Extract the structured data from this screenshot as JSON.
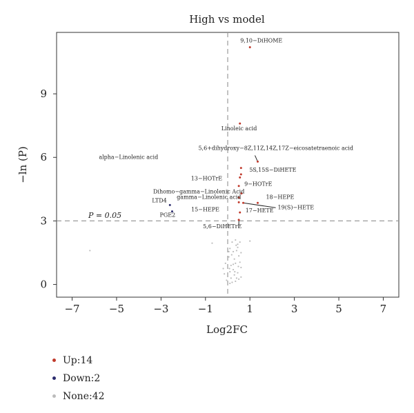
{
  "chart_data": {
    "type": "scatter",
    "title": "High vs model",
    "xlabel": "Log2FC",
    "ylabel": "−ln (P)",
    "xlim": [
      -7.7,
      7.7
    ],
    "ylim": [
      -0.6,
      11.9
    ],
    "xticks": [
      -7,
      -5,
      -3,
      -1,
      1,
      3,
      5,
      7
    ],
    "yticks": [
      0,
      3,
      6,
      9
    ],
    "tick_labels_x": [
      "−7",
      "−5",
      "−3",
      "−1",
      "1",
      "3",
      "5",
      "7"
    ],
    "tick_labels_y": [
      "0",
      "3",
      "6",
      "9"
    ],
    "threshold_y": 3.0,
    "threshold_x": 0.0,
    "threshold_label": "P = 0.05",
    "grid": false,
    "colors": {
      "up": "#c0392b",
      "down": "#2c2c6e",
      "none": "#bcbcbc"
    },
    "series": [
      {
        "name": "Up:14",
        "category": "up",
        "points": [
          {
            "x": 1.0,
            "y": 11.2,
            "label": "9,10−DiHOME"
          },
          {
            "x": 0.55,
            "y": 7.6,
            "label": "Linoleic acid"
          },
          {
            "x": 1.35,
            "y": 5.8,
            "label": "5,6+dihydroxy−8Z,11Z,14Z,17Z−eicosatetraenoic acid"
          },
          {
            "x": 0.6,
            "y": 5.5,
            "label": "alpha−Linolenic acid"
          },
          {
            "x": 0.6,
            "y": 5.2,
            "label": "5S,15S−DiHETE"
          },
          {
            "x": 0.55,
            "y": 5.05,
            "label": "13−HOTrE"
          },
          {
            "x": 0.5,
            "y": 4.65,
            "label": "9−HOTrE"
          },
          {
            "x": 0.62,
            "y": 4.3,
            "label": "Dihomo−gamma−Linolenic Acid"
          },
          {
            "x": 0.5,
            "y": 4.1,
            "label": "gamma−Linolenic acid"
          },
          {
            "x": 1.35,
            "y": 3.85,
            "label": "18−HEPE"
          },
          {
            "x": 0.5,
            "y": 3.88,
            "label": "15−HEPE"
          },
          {
            "x": 0.7,
            "y": 3.85,
            "label": "19(S)−HETE"
          },
          {
            "x": 0.55,
            "y": 3.4,
            "label": "17−HETE"
          },
          {
            "x": 0.5,
            "y": 3.05,
            "label": "5,6−DiHETrE"
          }
        ]
      },
      {
        "name": "Down:2",
        "category": "down",
        "points": [
          {
            "x": -2.6,
            "y": 3.75,
            "label": "LTD4"
          },
          {
            "x": -2.5,
            "y": 3.45,
            "label": "PGE2"
          }
        ]
      },
      {
        "name": "None:42",
        "category": "none",
        "points": [
          {
            "x": -6.2,
            "y": 1.6
          },
          {
            "x": -0.7,
            "y": 1.95
          },
          {
            "x": 1.0,
            "y": 2.05
          },
          {
            "x": 0.2,
            "y": 2.0
          },
          {
            "x": 0.35,
            "y": 2.1
          },
          {
            "x": 0.45,
            "y": 1.9
          },
          {
            "x": 0.55,
            "y": 2.0
          },
          {
            "x": 0.1,
            "y": 1.7
          },
          {
            "x": 0.25,
            "y": 1.55
          },
          {
            "x": 0.4,
            "y": 1.6
          },
          {
            "x": 0.6,
            "y": 1.5
          },
          {
            "x": 0.05,
            "y": 1.3
          },
          {
            "x": 0.3,
            "y": 1.2
          },
          {
            "x": 0.5,
            "y": 1.35
          },
          {
            "x": -0.1,
            "y": 1.0
          },
          {
            "x": 0.15,
            "y": 0.9
          },
          {
            "x": 0.35,
            "y": 1.0
          },
          {
            "x": 0.55,
            "y": 1.05
          },
          {
            "x": -0.2,
            "y": 0.75
          },
          {
            "x": 0.1,
            "y": 0.6
          },
          {
            "x": 0.25,
            "y": 0.7
          },
          {
            "x": 0.45,
            "y": 0.55
          },
          {
            "x": 0.6,
            "y": 0.8
          },
          {
            "x": 0.0,
            "y": 0.4
          },
          {
            "x": 0.15,
            "y": 0.3
          },
          {
            "x": 0.3,
            "y": 0.45
          },
          {
            "x": 0.5,
            "y": 0.25
          },
          {
            "x": -0.05,
            "y": 0.2
          },
          {
            "x": 0.2,
            "y": 0.1
          },
          {
            "x": 0.35,
            "y": 0.15
          },
          {
            "x": 0.4,
            "y": 0.3
          },
          {
            "x": 0.05,
            "y": 1.55
          },
          {
            "x": 0.45,
            "y": 1.75
          },
          {
            "x": 0.25,
            "y": 0.95
          },
          {
            "x": -0.15,
            "y": 0.5
          },
          {
            "x": 0.6,
            "y": 0.35
          },
          {
            "x": 0.1,
            "y": 0.05
          },
          {
            "x": 0.32,
            "y": 0.6
          },
          {
            "x": 0.48,
            "y": 0.85
          },
          {
            "x": 0.18,
            "y": 1.4
          },
          {
            "x": 0.38,
            "y": 1.85
          },
          {
            "x": 0.08,
            "y": 0.75
          }
        ]
      }
    ]
  },
  "legend": [
    {
      "label": "Up:14",
      "color": "#c0392b"
    },
    {
      "label": "Down:2",
      "color": "#2c2c6e"
    },
    {
      "label": "None:42",
      "color": "#bcbcbc"
    }
  ]
}
